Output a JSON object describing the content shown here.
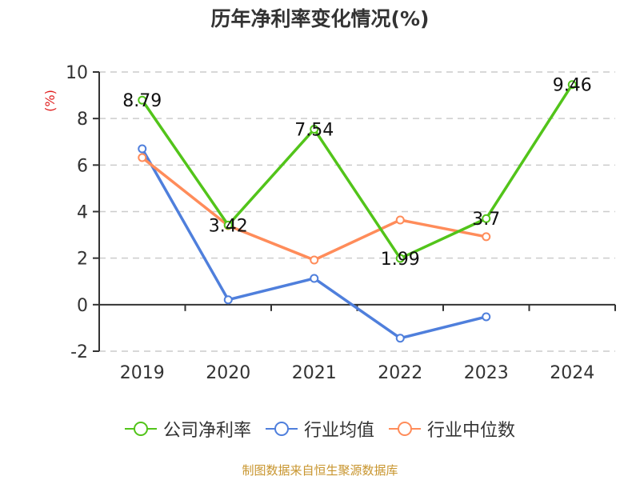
{
  "title": "历年净利率变化情况(%)",
  "footer": "制图数据来自恒生聚源数据库",
  "y_unit_label": "(%)",
  "colors": {
    "company": "#52c41a",
    "industry_avg": "#4f7fdc",
    "industry_median": "#ff8c5a",
    "unit_label": "#e02020",
    "grid": "#cccccc",
    "axis": "#333333",
    "footer": "#c8952e"
  },
  "legend": [
    {
      "label": "公司净利率",
      "color": "#52c41a"
    },
    {
      "label": "行业均值",
      "color": "#4f7fdc"
    },
    {
      "label": "行业中位数",
      "color": "#ff8c5a"
    }
  ],
  "chart_data": {
    "type": "line",
    "title": "历年净利率变化情况(%)",
    "xlabel": "",
    "ylabel": "(%)",
    "categories": [
      "2019",
      "2020",
      "2021",
      "2022",
      "2023",
      "2024"
    ],
    "ylim": [
      -2,
      10
    ],
    "yticks": [
      -2,
      0,
      2,
      4,
      6,
      8,
      10
    ],
    "grid": true,
    "legend_position": "bottom",
    "series": [
      {
        "name": "公司净利率",
        "values": [
          8.79,
          3.42,
          7.54,
          1.99,
          3.7,
          9.46
        ],
        "labels": [
          "8.79",
          "3.42",
          "7.54",
          "1.99",
          "3.7",
          "9.46"
        ]
      },
      {
        "name": "行业均值",
        "values": [
          6.7,
          0.21,
          1.13,
          -1.44,
          -0.52,
          null
        ]
      },
      {
        "name": "行业中位数",
        "values": [
          6.32,
          3.4,
          1.92,
          3.64,
          2.92,
          null
        ]
      }
    ]
  }
}
